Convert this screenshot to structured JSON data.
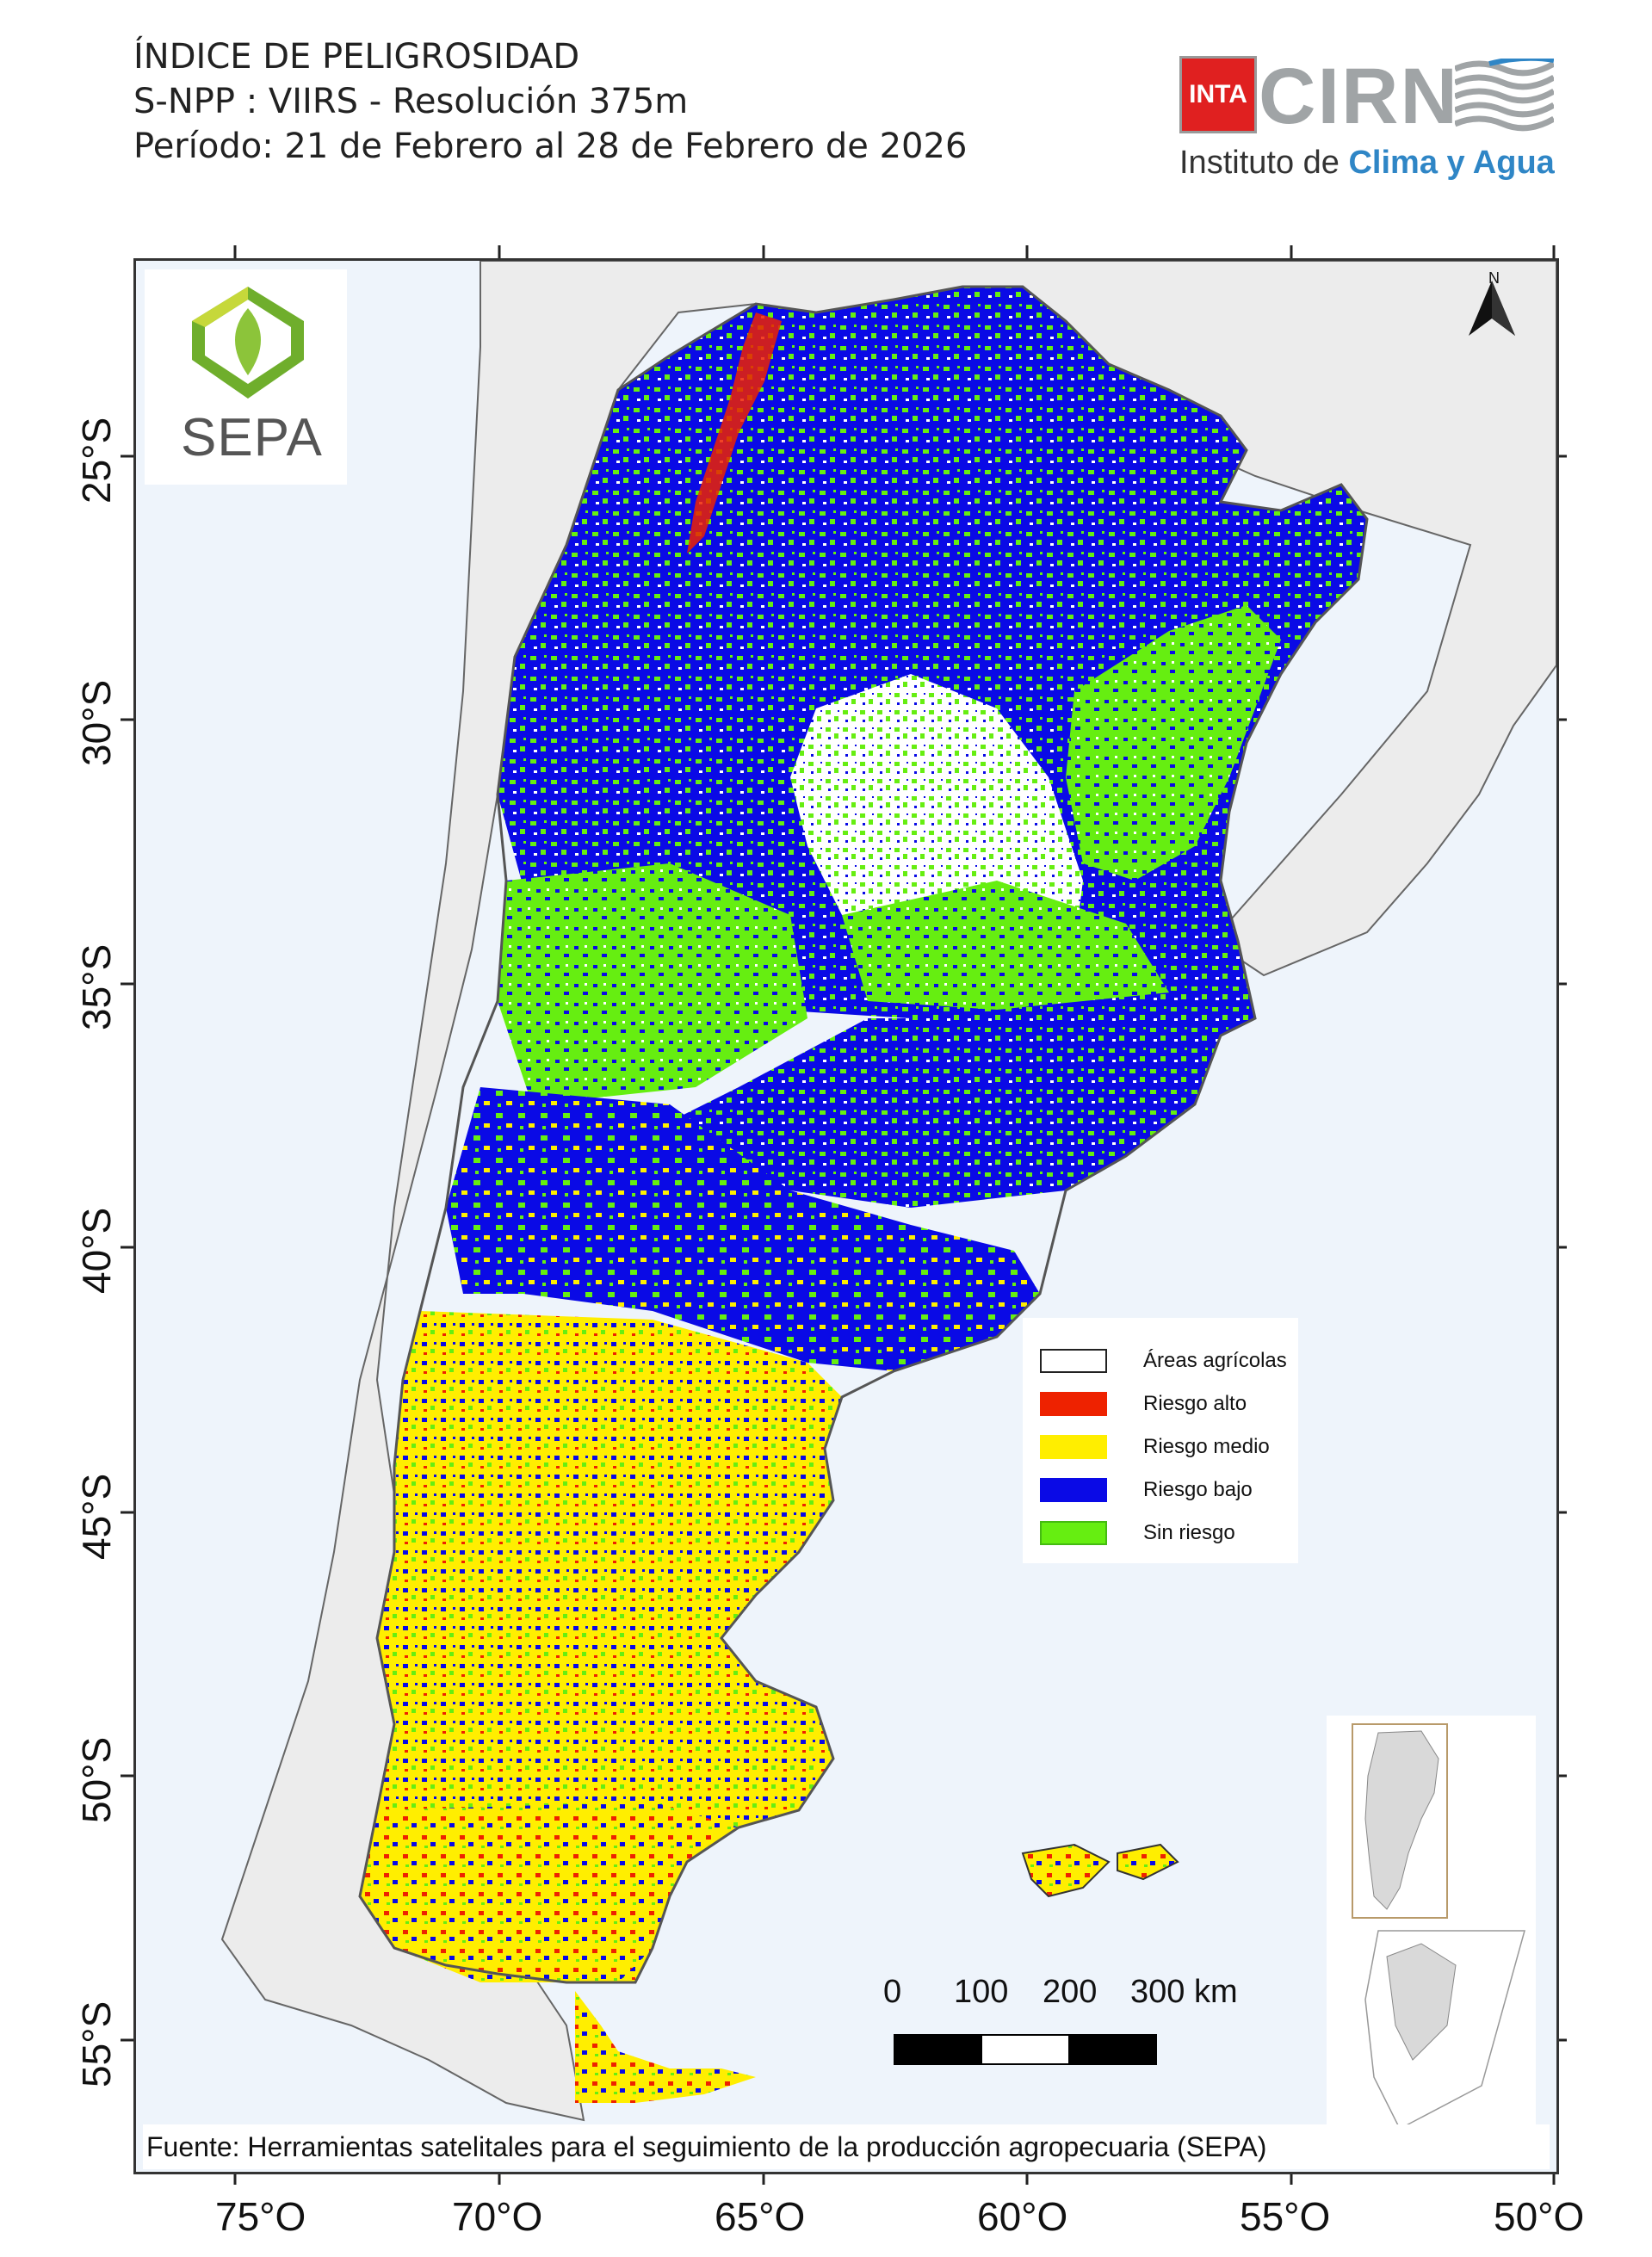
{
  "header": {
    "title_line1": "ÍNDICE DE PELIGROSIDAD",
    "title_line2": "S-NPP : VIIRS - Resolución 375m",
    "title_line3": "Período: 21 de Febrero al 28 de Febrero de 2026"
  },
  "logos": {
    "inta": "INTA",
    "cirn": "CIRN",
    "instituto_prefix": "Instituto de ",
    "instituto_accent": "Clima y Agua",
    "sepa": "SEPA"
  },
  "map": {
    "north_label": "N",
    "lat_labels": [
      "25°S",
      "30°S",
      "35°S",
      "40°S",
      "45°S",
      "50°S",
      "55°S"
    ],
    "lon_labels": [
      "75°O",
      "70°O",
      "65°O",
      "60°O",
      "55°O",
      "50°O"
    ],
    "colors": {
      "land": "#ececec",
      "sea": "#eef4fb",
      "riesgo_alto": "#ee2200",
      "riesgo_medio": "#ffee00",
      "riesgo_bajo": "#0a0ae6",
      "sin_riesgo": "#66ee11",
      "areas_agricolas": "#ffffff"
    }
  },
  "legend": {
    "items": [
      {
        "label": "Áreas agrícolas",
        "color": "#ffffff"
      },
      {
        "label": "Riesgo alto",
        "color": "#ee2200"
      },
      {
        "label": "Riesgo medio",
        "color": "#ffee00"
      },
      {
        "label": "Riesgo bajo",
        "color": "#0a0ae6"
      },
      {
        "label": "Sin riesgo",
        "color": "#66ee11"
      }
    ]
  },
  "scale": {
    "labels": [
      "0",
      "100",
      "200",
      "300 km"
    ]
  },
  "source": "Fuente: Herramientas satelitales para el seguimiento de la producción agropecuaria (SEPA)"
}
